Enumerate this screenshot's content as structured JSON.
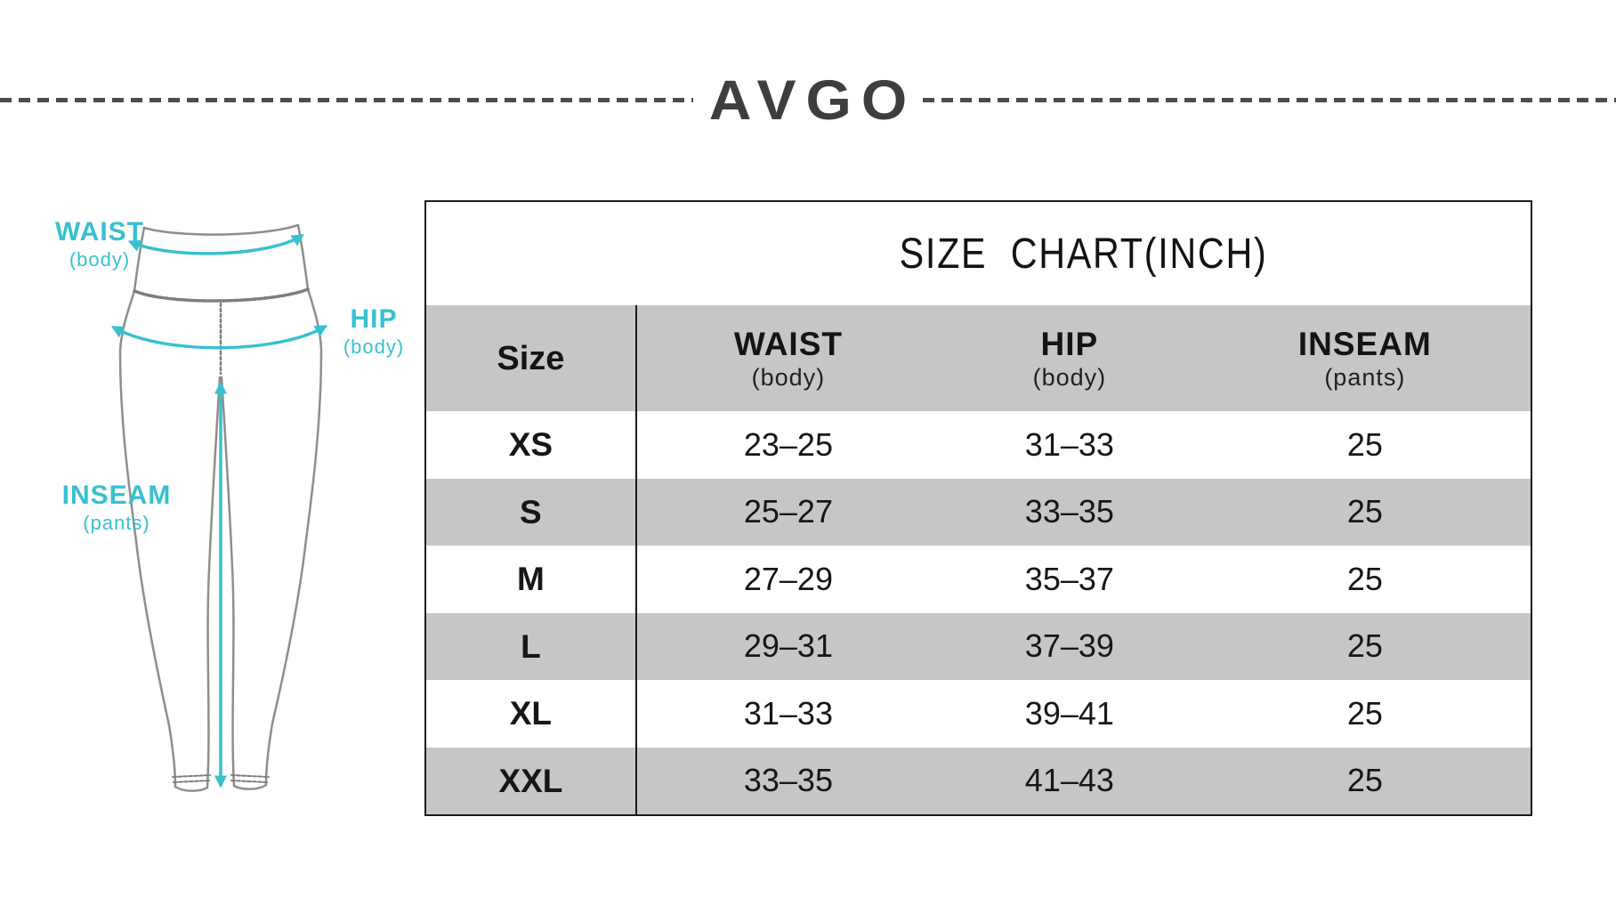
{
  "brand": {
    "logo": "AVGO",
    "logo_color": "#3e3e3e"
  },
  "diagram": {
    "accent_color": "#38c0d0",
    "outline_color": "#8e8e8e",
    "waist": {
      "title": "WAIST",
      "sub": "(body)"
    },
    "hip": {
      "title": "HIP",
      "sub": "(body)"
    },
    "inseam": {
      "title": "INSEAM",
      "sub": "(pants)"
    }
  },
  "chart_data": {
    "type": "table",
    "title": "SIZE  CHART(INCH)",
    "columns": [
      {
        "label": "Size",
        "sub": ""
      },
      {
        "label": "WAIST",
        "sub": "(body)"
      },
      {
        "label": "HIP",
        "sub": "(body)"
      },
      {
        "label": "INSEAM",
        "sub": "(pants)"
      }
    ],
    "rows": [
      [
        "XS",
        "23–25",
        "31–33",
        "25"
      ],
      [
        "S",
        "25–27",
        "33–35",
        "25"
      ],
      [
        "M",
        "27–29",
        "35–37",
        "25"
      ],
      [
        "L",
        "29–31",
        "37–39",
        "25"
      ],
      [
        "XL",
        "31–33",
        "39–41",
        "25"
      ],
      [
        "XXL",
        "33–35",
        "41–43",
        "25"
      ]
    ],
    "styles": {
      "header_bg": "#c6c6c6",
      "stripe_bg": "#c6c6c6",
      "border_color": "#1a1a1a"
    }
  }
}
